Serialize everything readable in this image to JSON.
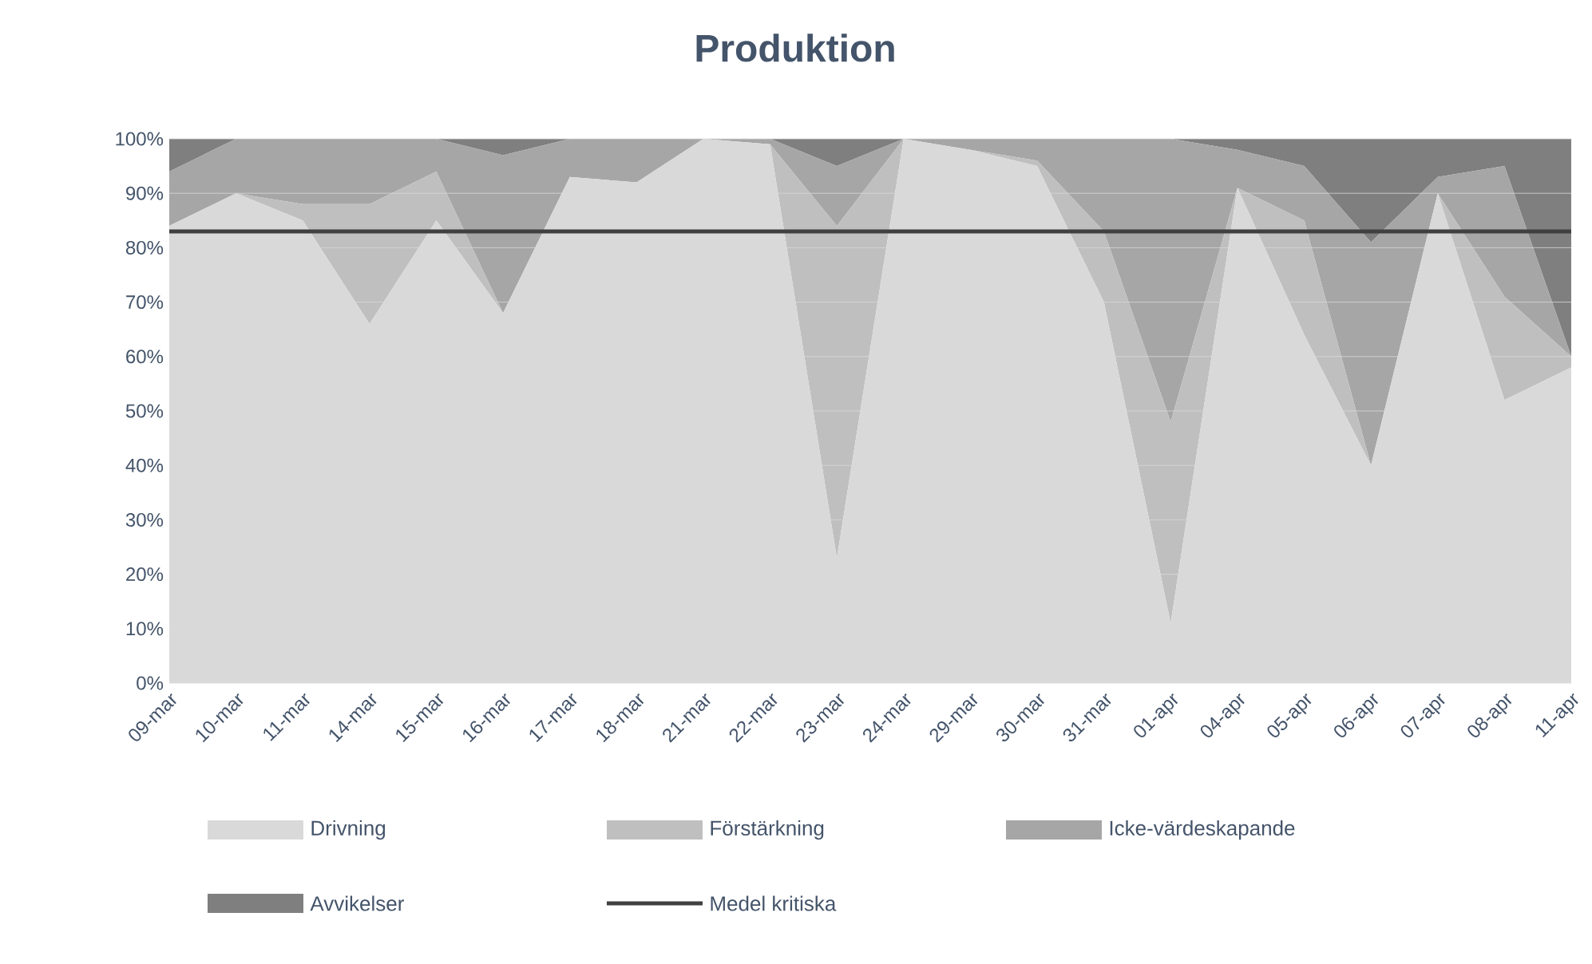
{
  "chart_data": {
    "type": "area",
    "title": "Produktion",
    "stacked": true,
    "grid": "y",
    "legend": "bottom",
    "categories": [
      "09-mar",
      "10-mar",
      "11-mar",
      "14-mar",
      "15-mar",
      "16-mar",
      "17-mar",
      "18-mar",
      "21-mar",
      "22-mar",
      "23-mar",
      "24-mar",
      "29-mar",
      "30-mar",
      "31-mar",
      "01-apr",
      "04-apr",
      "05-apr",
      "06-apr",
      "07-apr",
      "08-apr",
      "11-apr"
    ],
    "ylim": [
      0,
      100
    ],
    "yticks": [
      {
        "value": 0,
        "label": "0%"
      },
      {
        "value": 10,
        "label": "10%"
      },
      {
        "value": 20,
        "label": "20%"
      },
      {
        "value": 30,
        "label": "30%"
      },
      {
        "value": 40,
        "label": "40%"
      },
      {
        "value": 50,
        "label": "50%"
      },
      {
        "value": 60,
        "label": "60%"
      },
      {
        "value": 70,
        "label": "70%"
      },
      {
        "value": 80,
        "label": "80%"
      },
      {
        "value": 90,
        "label": "90%"
      },
      {
        "value": 100,
        "label": "100%"
      }
    ],
    "series": [
      {
        "name": "Drivning",
        "color": "#d9d9d9",
        "values": [
          84,
          90,
          85,
          66,
          85,
          68,
          93,
          92,
          100,
          99,
          23,
          100,
          98,
          95,
          70,
          11,
          91,
          64,
          40,
          90,
          52,
          58
        ]
      },
      {
        "name": "Förstärkning",
        "color": "#bfbfbf",
        "values": [
          0,
          0,
          3,
          22,
          9,
          0,
          0,
          0,
          0,
          0,
          61,
          0,
          0,
          1,
          13,
          37,
          0,
          21,
          0,
          0,
          19,
          2
        ]
      },
      {
        "name": "Icke-värdeskapande",
        "color": "#a6a6a6",
        "values": [
          10,
          10,
          12,
          12,
          6,
          29,
          7,
          8,
          0,
          1,
          11,
          0,
          2,
          4,
          17,
          52,
          7,
          10,
          41,
          3,
          24,
          0
        ]
      },
      {
        "name": "Avvikelser",
        "color": "#7f7f7f",
        "values": [
          6,
          0,
          0,
          0,
          0,
          3,
          0,
          0,
          0,
          0,
          5,
          0,
          0,
          0,
          0,
          0,
          2,
          5,
          19,
          7,
          5,
          40
        ]
      },
      {
        "name": "Medel kritiska",
        "type": "line",
        "color": "#404040",
        "values": [
          83,
          83,
          83,
          83,
          83,
          83,
          83,
          83,
          83,
          83,
          83,
          83,
          83,
          83,
          83,
          83,
          83,
          83,
          83,
          83,
          83,
          83
        ]
      }
    ]
  }
}
